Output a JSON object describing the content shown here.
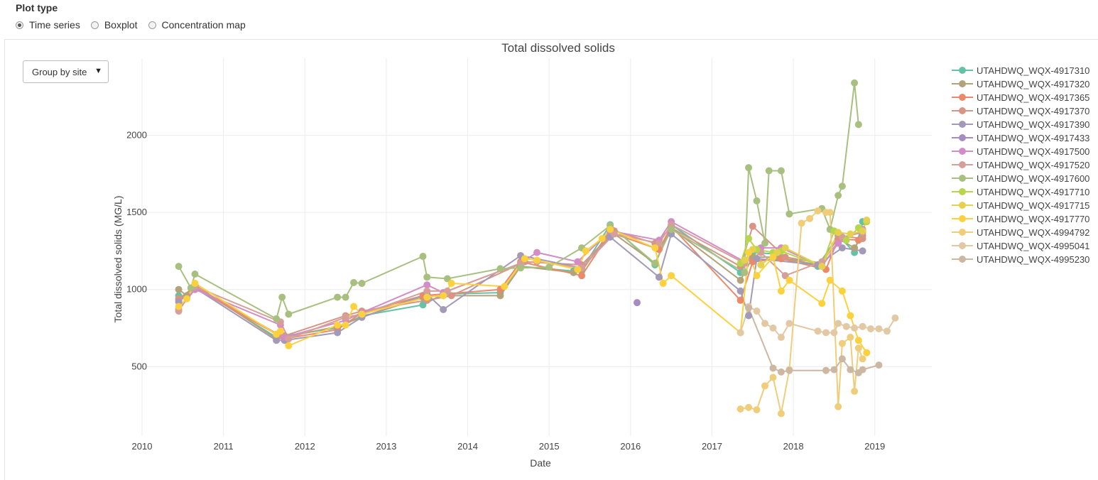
{
  "controls": {
    "plot_type_title": "Plot type",
    "options": [
      {
        "label": "Time series",
        "checked": true
      },
      {
        "label": "Boxplot",
        "checked": false
      },
      {
        "label": "Concentration map",
        "checked": false
      }
    ],
    "group_select": "Group by site"
  },
  "chart_data": {
    "type": "line",
    "title": "Total dissolved solids",
    "xlabel": "Date",
    "ylabel": "Total dissolved solids (MG/L)",
    "xlim": [
      2010.0,
      2019.7
    ],
    "ylim": [
      50,
      2500
    ],
    "x_ticks": [
      2010,
      2011,
      2012,
      2013,
      2014,
      2015,
      2016,
      2017,
      2018,
      2019
    ],
    "y_ticks": [
      500,
      1000,
      1500,
      2000
    ],
    "grid": true,
    "legend_position": "right",
    "series": [
      {
        "name": "UTAHDWQ_WQX-4917310",
        "color": "#66c2a5",
        "points": [
          [
            2010.45,
            960
          ],
          [
            2010.55,
            950
          ],
          [
            2010.65,
            1020
          ],
          [
            2011.65,
            690
          ],
          [
            2011.75,
            700
          ],
          [
            2012.4,
            750
          ],
          [
            2012.7,
            830
          ],
          [
            2013.45,
            900
          ],
          [
            2013.7,
            970
          ],
          [
            2014.4,
            980
          ],
          [
            2014.65,
            1150
          ],
          [
            2015.3,
            1120
          ],
          [
            2015.4,
            1130
          ],
          [
            2015.75,
            1420
          ],
          [
            2016.3,
            1160
          ],
          [
            2016.5,
            1420
          ],
          [
            2017.35,
            1110
          ],
          [
            2017.5,
            1240
          ],
          [
            2017.8,
            1230
          ],
          [
            2018.3,
            1150
          ],
          [
            2018.55,
            1350
          ],
          [
            2018.75,
            1240
          ],
          [
            2018.85,
            1440
          ]
        ]
      },
      {
        "name": "UTAHDWQ_WQX-4917320",
        "color": "#b3a27a",
        "points": [
          [
            2010.45,
            1000
          ],
          [
            2010.55,
            960
          ],
          [
            2010.65,
            1030
          ],
          [
            2011.65,
            680
          ],
          [
            2011.75,
            690
          ],
          [
            2012.4,
            760
          ],
          [
            2012.7,
            820
          ],
          [
            2013.45,
            950
          ],
          [
            2013.7,
            960
          ],
          [
            2014.4,
            960
          ],
          [
            2014.65,
            1150
          ],
          [
            2015.3,
            1110
          ],
          [
            2015.4,
            1120
          ],
          [
            2015.75,
            1380
          ],
          [
            2016.3,
            1170
          ],
          [
            2016.5,
            1400
          ],
          [
            2017.35,
            1060
          ],
          [
            2017.5,
            1210
          ],
          [
            2017.8,
            1210
          ],
          [
            2018.3,
            1160
          ],
          [
            2018.55,
            1330
          ],
          [
            2018.75,
            1270
          ],
          [
            2018.85,
            1350
          ]
        ]
      },
      {
        "name": "UTAHDWQ_WQX-4917365",
        "color": "#eb8a6b",
        "points": [
          [
            2010.45,
            930
          ],
          [
            2010.65,
            1010
          ],
          [
            2011.75,
            680
          ],
          [
            2012.4,
            740
          ],
          [
            2012.7,
            850
          ],
          [
            2013.45,
            960
          ],
          [
            2014.4,
            1000
          ],
          [
            2014.65,
            1180
          ],
          [
            2015.4,
            1090
          ],
          [
            2015.75,
            1370
          ],
          [
            2016.35,
            1260
          ],
          [
            2016.5,
            1410
          ],
          [
            2017.35,
            930
          ],
          [
            2017.5,
            1180
          ],
          [
            2017.85,
            1200
          ],
          [
            2018.4,
            1130
          ],
          [
            2018.55,
            1330
          ],
          [
            2018.8,
            1320
          ]
        ]
      },
      {
        "name": "UTAHDWQ_WQX-4917370",
        "color": "#d89585",
        "points": [
          [
            2010.45,
            940
          ],
          [
            2010.65,
            1020
          ],
          [
            2011.7,
            700
          ],
          [
            2011.75,
            700
          ],
          [
            2012.5,
            830
          ],
          [
            2012.7,
            860
          ],
          [
            2013.5,
            930
          ],
          [
            2013.8,
            960
          ],
          [
            2014.7,
            1180
          ],
          [
            2015.4,
            1160
          ],
          [
            2015.8,
            1380
          ],
          [
            2016.3,
            1300
          ],
          [
            2016.5,
            1400
          ],
          [
            2017.35,
            1150
          ],
          [
            2017.5,
            1410
          ],
          [
            2017.9,
            1210
          ],
          [
            2018.35,
            1170
          ],
          [
            2018.55,
            1350
          ],
          [
            2018.85,
            1330
          ]
        ]
      },
      {
        "name": "UTAHDWQ_WQX-4917390",
        "color": "#a39ab8",
        "points": [
          [
            2010.45,
            920
          ],
          [
            2010.65,
            1010
          ],
          [
            2011.65,
            670
          ],
          [
            2011.75,
            670
          ],
          [
            2012.4,
            720
          ],
          [
            2012.7,
            820
          ],
          [
            2013.5,
            970
          ],
          [
            2013.7,
            870
          ],
          [
            2014.65,
            1220
          ],
          [
            2015.4,
            1140
          ],
          [
            2015.75,
            1340
          ],
          [
            2016.35,
            1080
          ],
          [
            2016.5,
            1360
          ],
          [
            2017.35,
            990
          ],
          [
            2017.45,
            830
          ],
          [
            2017.55,
            1200
          ],
          [
            2018.3,
            1160
          ],
          [
            2018.6,
            1270
          ],
          [
            2018.85,
            1250
          ]
        ]
      },
      {
        "name": "UTAHDWQ_WQX-4917433",
        "color": "#a58dc4",
        "points": [
          [
            2016.08,
            915
          ]
        ]
      },
      {
        "name": "UTAHDWQ_WQX-4917500",
        "color": "#d38dc6",
        "points": [
          [
            2010.45,
            870
          ],
          [
            2010.65,
            1000
          ],
          [
            2011.7,
            770
          ],
          [
            2011.75,
            690
          ],
          [
            2012.5,
            800
          ],
          [
            2012.7,
            850
          ],
          [
            2013.5,
            1030
          ],
          [
            2013.7,
            980
          ],
          [
            2014.65,
            1170
          ],
          [
            2014.85,
            1240
          ],
          [
            2015.35,
            1180
          ],
          [
            2015.75,
            1380
          ],
          [
            2016.35,
            1320
          ],
          [
            2016.5,
            1440
          ],
          [
            2017.4,
            1180
          ],
          [
            2017.6,
            1270
          ],
          [
            2017.85,
            1270
          ],
          [
            2018.35,
            1150
          ],
          [
            2018.55,
            1300
          ],
          [
            2018.85,
            1390
          ]
        ]
      },
      {
        "name": "UTAHDWQ_WQX-4917520",
        "color": "#d6a09a",
        "points": [
          [
            2010.45,
            860
          ],
          [
            2010.65,
            1020
          ],
          [
            2011.7,
            790
          ],
          [
            2011.8,
            680
          ],
          [
            2012.5,
            820
          ],
          [
            2012.7,
            840
          ],
          [
            2013.5,
            990
          ],
          [
            2013.75,
            990
          ],
          [
            2014.65,
            1170
          ],
          [
            2014.85,
            1180
          ],
          [
            2015.4,
            1140
          ],
          [
            2015.8,
            1360
          ],
          [
            2016.35,
            1300
          ],
          [
            2016.5,
            1420
          ],
          [
            2017.4,
            1170
          ],
          [
            2017.6,
            1240
          ],
          [
            2017.9,
            1090
          ],
          [
            2018.35,
            1180
          ],
          [
            2018.6,
            1340
          ],
          [
            2018.85,
            1370
          ]
        ]
      },
      {
        "name": "UTAHDWQ_WQX-4917600",
        "color": "#a8c07f",
        "points": [
          [
            2010.45,
            1150
          ],
          [
            2010.6,
            1010
          ],
          [
            2010.65,
            1100
          ],
          [
            2011.65,
            810
          ],
          [
            2011.72,
            950
          ],
          [
            2011.8,
            840
          ],
          [
            2012.4,
            950
          ],
          [
            2012.5,
            950
          ],
          [
            2012.6,
            1045
          ],
          [
            2012.7,
            1040
          ],
          [
            2013.45,
            1215
          ],
          [
            2013.5,
            1080
          ],
          [
            2013.75,
            1070
          ],
          [
            2014.4,
            1135
          ],
          [
            2014.65,
            1140
          ],
          [
            2015.0,
            1145
          ],
          [
            2015.4,
            1270
          ],
          [
            2015.75,
            1415
          ],
          [
            2016.3,
            1170
          ],
          [
            2016.5,
            1390
          ],
          [
            2017.4,
            1110
          ],
          [
            2017.45,
            1790
          ],
          [
            2017.55,
            1575
          ],
          [
            2017.65,
            1300
          ],
          [
            2017.7,
            1770
          ],
          [
            2017.85,
            1770
          ],
          [
            2017.95,
            1490
          ],
          [
            2018.35,
            1525
          ],
          [
            2018.45,
            1390
          ],
          [
            2018.55,
            1610
          ],
          [
            2018.6,
            1670
          ],
          [
            2018.75,
            2340
          ],
          [
            2018.8,
            2070
          ]
        ]
      },
      {
        "name": "UTAHDWQ_WQX-4917710",
        "color": "#b7d64b",
        "points": [
          [
            2017.35,
            1170
          ],
          [
            2017.45,
            1330
          ],
          [
            2017.55,
            1260
          ],
          [
            2017.75,
            1240
          ],
          [
            2017.85,
            1250
          ],
          [
            2018.35,
            1150
          ],
          [
            2018.5,
            1380
          ],
          [
            2018.65,
            1320
          ],
          [
            2018.8,
            1400
          ],
          [
            2018.9,
            1440
          ]
        ]
      },
      {
        "name": "UTAHDWQ_WQX-4917715",
        "color": "#e5d14f",
        "points": [
          [
            2017.4,
            1190
          ],
          [
            2017.5,
            1260
          ],
          [
            2017.6,
            1160
          ],
          [
            2017.8,
            1240
          ],
          [
            2017.9,
            1270
          ],
          [
            2018.35,
            1150
          ],
          [
            2018.55,
            1370
          ],
          [
            2018.7,
            1360
          ],
          [
            2018.85,
            1380
          ],
          [
            2018.9,
            1450
          ]
        ]
      },
      {
        "name": "UTAHDWQ_WQX-4917770",
        "color": "#fcd13e",
        "points": [
          [
            2010.45,
            890
          ],
          [
            2010.55,
            940
          ],
          [
            2010.65,
            1040
          ],
          [
            2011.65,
            710
          ],
          [
            2011.7,
            730
          ],
          [
            2011.8,
            635
          ],
          [
            2012.4,
            770
          ],
          [
            2012.5,
            770
          ],
          [
            2012.6,
            890
          ],
          [
            2012.7,
            840
          ],
          [
            2013.5,
            950
          ],
          [
            2013.7,
            960
          ],
          [
            2013.8,
            1040
          ],
          [
            2014.45,
            1020
          ],
          [
            2014.7,
            1200
          ],
          [
            2014.85,
            1190
          ],
          [
            2015.35,
            1130
          ],
          [
            2015.45,
            1250
          ],
          [
            2015.65,
            1330
          ],
          [
            2015.75,
            1390
          ],
          [
            2016.3,
            1270
          ],
          [
            2016.4,
            1040
          ],
          [
            2016.5,
            1090
          ],
          [
            2017.35,
            720
          ],
          [
            2017.45,
            1240
          ],
          [
            2017.55,
            1090
          ],
          [
            2017.75,
            1210
          ],
          [
            2017.85,
            990
          ],
          [
            2017.95,
            1060
          ],
          [
            2018.35,
            910
          ],
          [
            2018.45,
            1060
          ],
          [
            2018.6,
            990
          ],
          [
            2018.7,
            830
          ],
          [
            2018.8,
            670
          ],
          [
            2018.9,
            590
          ]
        ]
      },
      {
        "name": "UTAHDWQ_WQX-4994792",
        "color": "#f0cd7a",
        "points": [
          [
            2017.35,
            225
          ],
          [
            2017.45,
            235
          ],
          [
            2017.55,
            220
          ],
          [
            2017.65,
            375
          ],
          [
            2017.75,
            430
          ],
          [
            2017.85,
            195
          ],
          [
            2017.95,
            480
          ],
          [
            2018.1,
            1430
          ],
          [
            2018.2,
            1460
          ],
          [
            2018.3,
            1510
          ],
          [
            2018.4,
            1500
          ],
          [
            2018.45,
            1500
          ],
          [
            2018.55,
            240
          ],
          [
            2018.6,
            650
          ],
          [
            2018.7,
            690
          ],
          [
            2018.75,
            340
          ],
          [
            2018.8,
            620
          ],
          [
            2018.85,
            550
          ]
        ]
      },
      {
        "name": "UTAHDWQ_WQX-4995041",
        "color": "#e2c8a3",
        "points": [
          [
            2017.35,
            720
          ],
          [
            2017.45,
            890
          ],
          [
            2017.55,
            860
          ],
          [
            2017.65,
            780
          ],
          [
            2017.75,
            750
          ],
          [
            2017.85,
            690
          ],
          [
            2017.95,
            780
          ],
          [
            2018.3,
            730
          ],
          [
            2018.4,
            720
          ],
          [
            2018.5,
            720
          ],
          [
            2018.55,
            780
          ],
          [
            2018.65,
            760
          ],
          [
            2018.75,
            750
          ],
          [
            2018.85,
            760
          ],
          [
            2018.95,
            745
          ],
          [
            2019.05,
            745
          ],
          [
            2019.15,
            730
          ],
          [
            2019.25,
            815
          ]
        ]
      },
      {
        "name": "UTAHDWQ_WQX-4995230",
        "color": "#ccb7a3",
        "points": [
          [
            2017.45,
            880
          ],
          [
            2017.75,
            490
          ],
          [
            2017.85,
            465
          ],
          [
            2017.95,
            475
          ],
          [
            2018.4,
            475
          ],
          [
            2018.5,
            480
          ],
          [
            2018.6,
            550
          ],
          [
            2018.7,
            480
          ],
          [
            2018.8,
            460
          ],
          [
            2018.85,
            480
          ],
          [
            2019.05,
            510
          ]
        ]
      }
    ]
  }
}
